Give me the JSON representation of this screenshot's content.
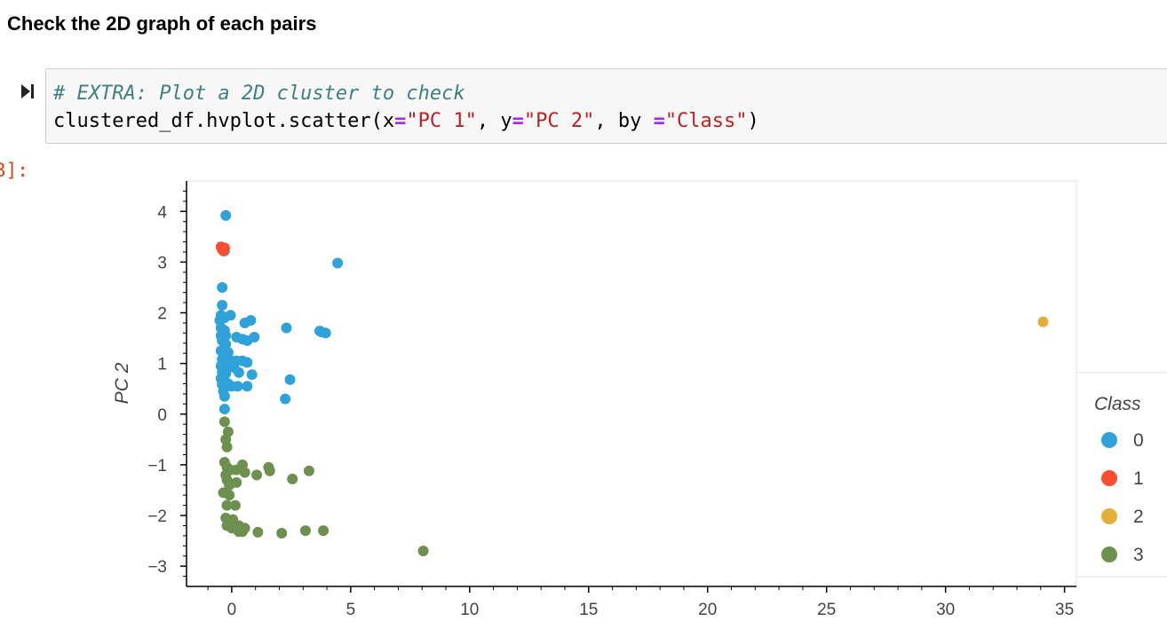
{
  "heading": "Check the 2D graph of each pairs",
  "cell": {
    "out_prompt": "3]:",
    "code_line1": "# EXTRA: Plot a 2D cluster to check",
    "code_l2_a": "clustered_df.hvplot.scatter(x",
    "code_l2_eq1": "=",
    "code_l2_s1": "\"PC 1\"",
    "code_l2_b": ", y",
    "code_l2_eq2": "=",
    "code_l2_s2": "\"PC 2\"",
    "code_l2_c": ", by ",
    "code_l2_eq3": "=",
    "code_l2_s3": "\"Class\"",
    "code_l2_d": ")"
  },
  "colors": {
    "class0": "#30a2da",
    "class1": "#fc4f30",
    "class2": "#e5ae38",
    "class3": "#6d904f",
    "axis": "#000000",
    "tick_text": "#444444"
  },
  "chart_data": {
    "type": "scatter",
    "title": "",
    "xlabel": "",
    "ylabel": "PC 2",
    "xlim": [
      -1.9,
      35.5
    ],
    "ylim": [
      -3.4,
      4.6
    ],
    "x_ticks": [
      0,
      5,
      10,
      15,
      20,
      25,
      30,
      35
    ],
    "y_ticks": [
      -3,
      -2,
      -1,
      0,
      1,
      2,
      3,
      4
    ],
    "x_tick_labels": [
      "0",
      "5",
      "10",
      "15",
      "20",
      "25",
      "30",
      "35"
    ],
    "y_tick_labels": [
      "−3",
      "−2",
      "−1",
      "0",
      "1",
      "2",
      "3",
      "4"
    ],
    "legend_title": "Class",
    "legend_position": "right",
    "series": [
      {
        "name": "0",
        "points": [
          [
            -0.25,
            3.92
          ],
          [
            4.45,
            2.98
          ],
          [
            -0.3,
            3.22
          ],
          [
            -0.4,
            2.5
          ],
          [
            -0.4,
            2.15
          ],
          [
            -0.45,
            1.95
          ],
          [
            -0.3,
            1.9
          ],
          [
            -0.05,
            1.95
          ],
          [
            -0.5,
            1.85
          ],
          [
            0.55,
            1.8
          ],
          [
            0.8,
            1.85
          ],
          [
            -0.45,
            1.7
          ],
          [
            -0.3,
            1.65
          ],
          [
            -0.35,
            1.6
          ],
          [
            -0.45,
            1.55
          ],
          [
            -0.25,
            1.55
          ],
          [
            0.2,
            1.52
          ],
          [
            0.45,
            1.48
          ],
          [
            0.65,
            1.45
          ],
          [
            0.95,
            1.52
          ],
          [
            2.3,
            1.7
          ],
          [
            3.7,
            1.64
          ],
          [
            3.78,
            1.62
          ],
          [
            3.95,
            1.6
          ],
          [
            -0.4,
            1.45
          ],
          [
            -0.25,
            1.38
          ],
          [
            -0.45,
            1.25
          ],
          [
            -0.35,
            1.2
          ],
          [
            -0.15,
            1.22
          ],
          [
            -0.4,
            1.08
          ],
          [
            -0.1,
            1.08
          ],
          [
            0.45,
            1.05
          ],
          [
            0.65,
            1.02
          ],
          [
            0.2,
            1.05
          ],
          [
            -0.45,
            0.95
          ],
          [
            -0.3,
            0.92
          ],
          [
            -0.15,
            0.98
          ],
          [
            0.1,
            0.92
          ],
          [
            -0.4,
            0.82
          ],
          [
            -0.25,
            0.8
          ],
          [
            0.3,
            0.82
          ],
          [
            0.85,
            0.78
          ],
          [
            -0.45,
            0.7
          ],
          [
            -0.3,
            0.65
          ],
          [
            -0.15,
            0.6
          ],
          [
            2.45,
            0.68
          ],
          [
            -0.4,
            0.58
          ],
          [
            0.0,
            0.55
          ],
          [
            0.25,
            0.55
          ],
          [
            0.65,
            0.55
          ],
          [
            -0.35,
            0.45
          ],
          [
            -0.3,
            0.35
          ],
          [
            2.25,
            0.3
          ],
          [
            -0.3,
            0.1
          ]
        ]
      },
      {
        "name": "1",
        "points": [
          [
            -0.45,
            3.3
          ],
          [
            -0.4,
            3.25
          ],
          [
            -0.3,
            3.28
          ],
          [
            -0.35,
            3.22
          ]
        ]
      },
      {
        "name": "2",
        "points": [
          [
            34.1,
            1.82
          ]
        ]
      },
      {
        "name": "3",
        "points": [
          [
            -0.3,
            -0.15
          ],
          [
            -0.15,
            -0.35
          ],
          [
            -0.25,
            -0.5
          ],
          [
            -0.2,
            -0.65
          ],
          [
            -0.3,
            -0.95
          ],
          [
            -0.2,
            -1.05
          ],
          [
            -0.05,
            -1.1
          ],
          [
            0.2,
            -1.1
          ],
          [
            0.45,
            -1.0
          ],
          [
            0.55,
            -1.15
          ],
          [
            1.05,
            -1.2
          ],
          [
            1.55,
            -1.05
          ],
          [
            1.6,
            -1.12
          ],
          [
            2.55,
            -1.28
          ],
          [
            3.25,
            -1.12
          ],
          [
            -0.25,
            -1.2
          ],
          [
            -0.2,
            -1.3
          ],
          [
            -0.1,
            -1.4
          ],
          [
            0.2,
            -1.35
          ],
          [
            -0.35,
            -1.55
          ],
          [
            -0.1,
            -1.6
          ],
          [
            -0.2,
            -1.8
          ],
          [
            0.15,
            -1.8
          ],
          [
            -0.25,
            -2.05
          ],
          [
            -0.1,
            -2.1
          ],
          [
            0.05,
            -2.08
          ],
          [
            -0.2,
            -2.2
          ],
          [
            0.0,
            -2.25
          ],
          [
            0.3,
            -2.2
          ],
          [
            0.4,
            -2.28
          ],
          [
            0.55,
            -2.25
          ],
          [
            0.3,
            -2.32
          ],
          [
            0.45,
            -2.32
          ],
          [
            1.1,
            -2.33
          ],
          [
            2.1,
            -2.35
          ],
          [
            3.1,
            -2.3
          ],
          [
            3.85,
            -2.3
          ],
          [
            8.05,
            -2.7
          ]
        ]
      }
    ]
  }
}
